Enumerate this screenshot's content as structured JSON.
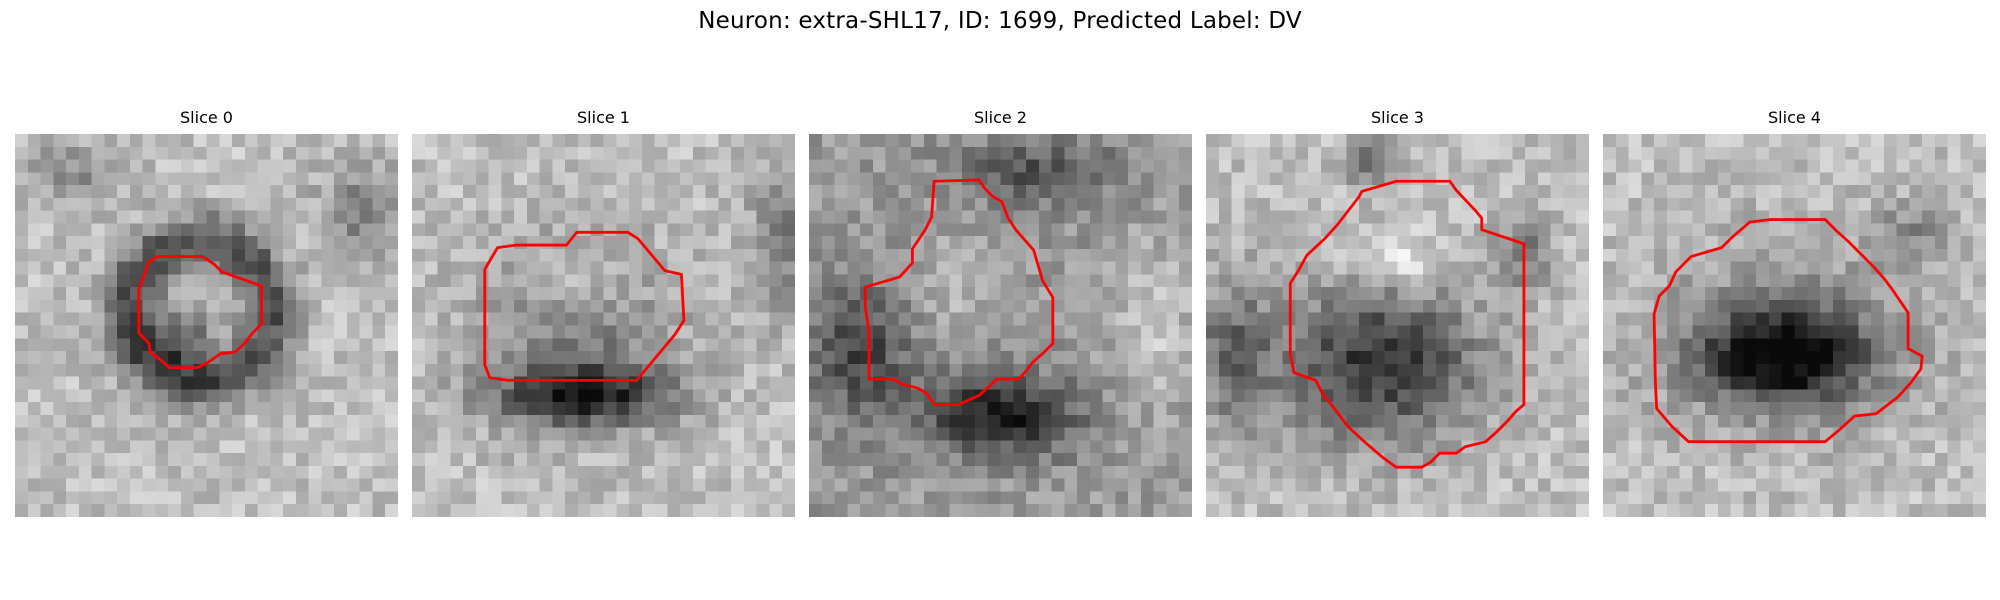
{
  "figure": {
    "title": "Neuron: extra-SHL17, ID: 1699, Predicted Label: DV"
  },
  "colors": {
    "contour": "#ff0000",
    "background": "#ffffff"
  },
  "image_grid": 30,
  "panels": [
    {
      "title": "Slice 0",
      "contour": [
        [
          9.7,
          12.2
        ],
        [
          10.5,
          10.0
        ],
        [
          11.2,
          9.6
        ],
        [
          14.7,
          9.6
        ],
        [
          15.6,
          10.2
        ],
        [
          16.2,
          10.8
        ],
        [
          19.3,
          11.9
        ],
        [
          19.3,
          14.9
        ],
        [
          18.6,
          15.6
        ],
        [
          17.9,
          16.5
        ],
        [
          17.2,
          17.1
        ],
        [
          16.1,
          17.2
        ],
        [
          15.1,
          17.9
        ],
        [
          14.3,
          18.3
        ],
        [
          12.1,
          18.3
        ],
        [
          11.4,
          17.7
        ],
        [
          10.6,
          17.1
        ],
        [
          10.5,
          16.4
        ],
        [
          9.7,
          15.6
        ]
      ],
      "pattern": "ring"
    },
    {
      "title": "Slice 1",
      "contour": [
        [
          5.7,
          11.4
        ],
        [
          5.7,
          10.6
        ],
        [
          6.7,
          8.9
        ],
        [
          8.2,
          8.7
        ],
        [
          12.1,
          8.7
        ],
        [
          12.9,
          7.7
        ],
        [
          16.9,
          7.7
        ],
        [
          17.7,
          8.2
        ],
        [
          19.8,
          10.7
        ],
        [
          21.1,
          11.0
        ],
        [
          21.3,
          14.6
        ],
        [
          20.6,
          15.7
        ],
        [
          17.6,
          19.3
        ],
        [
          7.6,
          19.3
        ],
        [
          6.1,
          19.1
        ],
        [
          5.7,
          18.1
        ]
      ],
      "pattern": "bright-top-dark-bottom"
    },
    {
      "title": "Slice 2",
      "contour": [
        [
          9.8,
          3.7
        ],
        [
          13.3,
          3.6
        ],
        [
          13.8,
          4.3
        ],
        [
          14.4,
          4.9
        ],
        [
          15.1,
          5.3
        ],
        [
          15.6,
          6.6
        ],
        [
          16.2,
          7.5
        ],
        [
          17.6,
          9.1
        ],
        [
          18.3,
          11.5
        ],
        [
          19.1,
          12.8
        ],
        [
          19.1,
          16.4
        ],
        [
          18.4,
          17.1
        ],
        [
          17.5,
          17.9
        ],
        [
          16.9,
          18.7
        ],
        [
          16.4,
          19.2
        ],
        [
          14.7,
          19.2
        ],
        [
          14.2,
          19.7
        ],
        [
          13.3,
          20.5
        ],
        [
          11.7,
          21.2
        ],
        [
          9.8,
          21.2
        ],
        [
          9.2,
          20.3
        ],
        [
          8.5,
          19.9
        ],
        [
          7.3,
          19.6
        ],
        [
          6.6,
          19.2
        ],
        [
          4.7,
          19.2
        ],
        [
          4.7,
          15.5
        ],
        [
          4.4,
          13.5
        ],
        [
          4.4,
          12.0
        ],
        [
          7.1,
          11.2
        ],
        [
          8.1,
          10.1
        ],
        [
          8.1,
          9.0
        ],
        [
          9.1,
          7.5
        ],
        [
          9.6,
          6.5
        ]
      ],
      "pattern": "bright-center-dark-bottom"
    },
    {
      "title": "Slice 3",
      "contour": [
        [
          12.0,
          4.9
        ],
        [
          12.2,
          4.5
        ],
        [
          14.9,
          3.7
        ],
        [
          19.1,
          3.7
        ],
        [
          19.6,
          4.4
        ],
        [
          21.1,
          6.0
        ],
        [
          21.6,
          6.6
        ],
        [
          21.6,
          7.5
        ],
        [
          24.9,
          8.6
        ],
        [
          24.9,
          21.2
        ],
        [
          24.3,
          21.7
        ],
        [
          23.6,
          22.5
        ],
        [
          22.7,
          23.4
        ],
        [
          21.9,
          24.1
        ],
        [
          20.3,
          24.5
        ],
        [
          19.6,
          25.0
        ],
        [
          18.3,
          25.0
        ],
        [
          17.6,
          25.7
        ],
        [
          16.9,
          26.1
        ],
        [
          14.9,
          26.1
        ],
        [
          13.8,
          25.3
        ],
        [
          12.4,
          24.1
        ],
        [
          11.1,
          22.9
        ],
        [
          10.2,
          21.7
        ],
        [
          9.1,
          20.3
        ],
        [
          8.6,
          19.3
        ],
        [
          6.9,
          18.7
        ],
        [
          6.6,
          17.3
        ],
        [
          6.6,
          11.7
        ],
        [
          7.3,
          10.6
        ],
        [
          7.9,
          9.5
        ],
        [
          9.3,
          8.2
        ],
        [
          10.3,
          7.1
        ]
      ],
      "pattern": "bright-top-dark-large"
    },
    {
      "title": "Slice 4",
      "contour": [
        [
          13.1,
          6.7
        ],
        [
          17.4,
          6.7
        ],
        [
          18.3,
          7.6
        ],
        [
          19.2,
          8.4
        ],
        [
          20.1,
          9.3
        ],
        [
          21.1,
          10.3
        ],
        [
          22.0,
          11.3
        ],
        [
          22.6,
          12.1
        ],
        [
          23.9,
          14.0
        ],
        [
          23.9,
          16.8
        ],
        [
          25.0,
          17.4
        ],
        [
          24.9,
          18.4
        ],
        [
          24.1,
          19.5
        ],
        [
          23.1,
          20.6
        ],
        [
          21.4,
          21.9
        ],
        [
          19.7,
          22.1
        ],
        [
          18.6,
          23.1
        ],
        [
          17.4,
          24.1
        ],
        [
          6.7,
          24.1
        ],
        [
          5.4,
          22.9
        ],
        [
          4.2,
          21.5
        ],
        [
          4.1,
          19.3
        ],
        [
          4.0,
          14.1
        ],
        [
          4.4,
          12.7
        ],
        [
          5.2,
          11.9
        ],
        [
          5.7,
          10.8
        ],
        [
          6.9,
          9.6
        ],
        [
          9.3,
          8.9
        ],
        [
          10.1,
          8.1
        ],
        [
          11.5,
          6.9
        ]
      ],
      "pattern": "dark-center"
    }
  ]
}
